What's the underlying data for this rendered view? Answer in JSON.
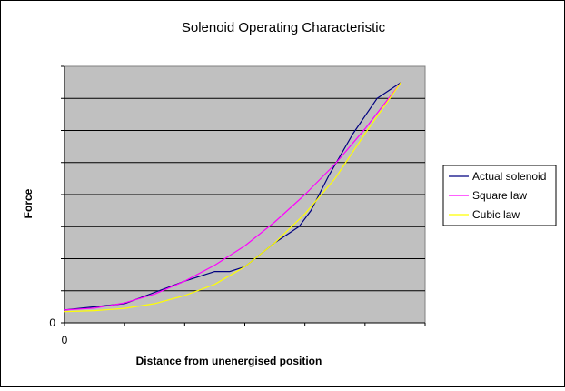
{
  "chart_data": {
    "type": "line",
    "title": "Solenoid Operating Characteristic",
    "xlabel": "Distance from unenergised position",
    "ylabel": "Force",
    "x_tick_labels": [
      "0"
    ],
    "y_tick_labels": [
      "0"
    ],
    "xlim": [
      0,
      6
    ],
    "ylim": [
      0,
      8
    ],
    "grid": "horizontal",
    "legend_position": "right",
    "plot_background": "#c0c0c0",
    "series": [
      {
        "name": "Actual solenoid",
        "color": "#000080",
        "x": [
          0,
          0.5,
          1,
          1.5,
          2,
          2.5,
          2.75,
          3,
          3.5,
          3.9,
          4.1,
          4.4,
          4.8,
          5.2,
          5.6
        ],
        "y": [
          0.4,
          0.5,
          0.6,
          0.95,
          1.3,
          1.6,
          1.6,
          1.75,
          2.5,
          3.0,
          3.5,
          4.6,
          5.9,
          7.0,
          7.5
        ]
      },
      {
        "name": "Square law",
        "color": "#ff00ff",
        "x": [
          0,
          0.5,
          1,
          1.5,
          2,
          2.5,
          3,
          3.5,
          4,
          4.5,
          5,
          5.6
        ],
        "y": [
          0.4,
          0.46,
          0.62,
          0.9,
          1.3,
          1.8,
          2.4,
          3.15,
          4.0,
          4.95,
          6.05,
          7.5
        ]
      },
      {
        "name": "Cubic law",
        "color": "#ffff00",
        "x": [
          0,
          0.5,
          1,
          1.5,
          2,
          2.5,
          3,
          3.5,
          4,
          4.5,
          5,
          5.6
        ],
        "y": [
          0.35,
          0.38,
          0.45,
          0.6,
          0.85,
          1.2,
          1.75,
          2.5,
          3.4,
          4.5,
          5.9,
          7.5
        ]
      }
    ]
  }
}
